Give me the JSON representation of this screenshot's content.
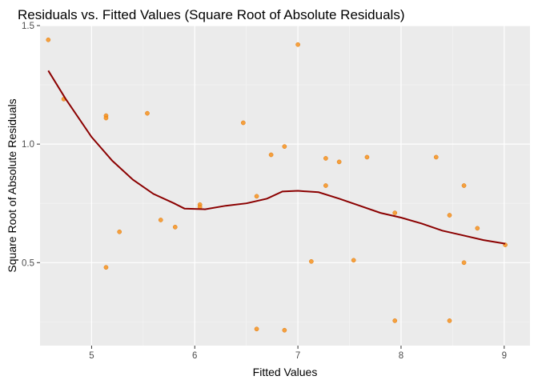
{
  "chart_data": {
    "type": "scatter",
    "title": "Residuals vs. Fitted Values (Square Root of Absolute Residuals)",
    "xlabel": "Fitted Values",
    "ylabel": "Square Root of Absolute Residuals",
    "xlim": [
      4.5,
      9.25
    ],
    "ylim": [
      0.15,
      1.5
    ],
    "xticks": [
      5,
      6,
      7,
      8,
      9
    ],
    "xtick_labels": [
      "5",
      "6",
      "7",
      "8",
      "9"
    ],
    "yticks": [
      0.5,
      1.0,
      1.5
    ],
    "ytick_labels": [
      "0.5",
      "1.0",
      "1.5"
    ],
    "grid": true,
    "legend": "none",
    "point_color": "#f7931e",
    "line_color": "#8b0000",
    "panel_color": "#ebebeb",
    "points": [
      {
        "x": 4.58,
        "y": 1.44
      },
      {
        "x": 4.73,
        "y": 1.19
      },
      {
        "x": 5.14,
        "y": 1.12
      },
      {
        "x": 5.14,
        "y": 1.11
      },
      {
        "x": 5.14,
        "y": 0.48
      },
      {
        "x": 5.27,
        "y": 0.63
      },
      {
        "x": 5.54,
        "y": 1.13
      },
      {
        "x": 5.67,
        "y": 0.68
      },
      {
        "x": 5.81,
        "y": 0.65
      },
      {
        "x": 6.05,
        "y": 0.745
      },
      {
        "x": 6.05,
        "y": 0.735
      },
      {
        "x": 6.47,
        "y": 1.09
      },
      {
        "x": 6.6,
        "y": 0.78
      },
      {
        "x": 6.6,
        "y": 0.22
      },
      {
        "x": 6.74,
        "y": 0.955
      },
      {
        "x": 6.87,
        "y": 0.99
      },
      {
        "x": 6.87,
        "y": 0.215
      },
      {
        "x": 7.0,
        "y": 1.42
      },
      {
        "x": 7.13,
        "y": 0.505
      },
      {
        "x": 7.27,
        "y": 0.94
      },
      {
        "x": 7.27,
        "y": 0.825
      },
      {
        "x": 7.4,
        "y": 0.925
      },
      {
        "x": 7.54,
        "y": 0.51
      },
      {
        "x": 7.67,
        "y": 0.945
      },
      {
        "x": 7.94,
        "y": 0.71
      },
      {
        "x": 7.94,
        "y": 0.255
      },
      {
        "x": 8.34,
        "y": 0.945
      },
      {
        "x": 8.47,
        "y": 0.7
      },
      {
        "x": 8.47,
        "y": 0.255
      },
      {
        "x": 8.61,
        "y": 0.825
      },
      {
        "x": 8.61,
        "y": 0.5
      },
      {
        "x": 8.74,
        "y": 0.645
      },
      {
        "x": 9.01,
        "y": 0.575
      }
    ],
    "smooth_line": [
      {
        "x": 4.58,
        "y": 1.31
      },
      {
        "x": 4.75,
        "y": 1.19
      },
      {
        "x": 5.0,
        "y": 1.03
      },
      {
        "x": 5.2,
        "y": 0.93
      },
      {
        "x": 5.4,
        "y": 0.85
      },
      {
        "x": 5.6,
        "y": 0.79
      },
      {
        "x": 5.8,
        "y": 0.75
      },
      {
        "x": 5.9,
        "y": 0.728
      },
      {
        "x": 6.1,
        "y": 0.725
      },
      {
        "x": 6.3,
        "y": 0.74
      },
      {
        "x": 6.5,
        "y": 0.75
      },
      {
        "x": 6.7,
        "y": 0.77
      },
      {
        "x": 6.85,
        "y": 0.8
      },
      {
        "x": 7.0,
        "y": 0.803
      },
      {
        "x": 7.2,
        "y": 0.797
      },
      {
        "x": 7.4,
        "y": 0.77
      },
      {
        "x": 7.6,
        "y": 0.74
      },
      {
        "x": 7.8,
        "y": 0.71
      },
      {
        "x": 8.0,
        "y": 0.69
      },
      {
        "x": 8.2,
        "y": 0.665
      },
      {
        "x": 8.4,
        "y": 0.635
      },
      {
        "x": 8.6,
        "y": 0.615
      },
      {
        "x": 8.8,
        "y": 0.595
      },
      {
        "x": 9.01,
        "y": 0.58
      }
    ]
  }
}
